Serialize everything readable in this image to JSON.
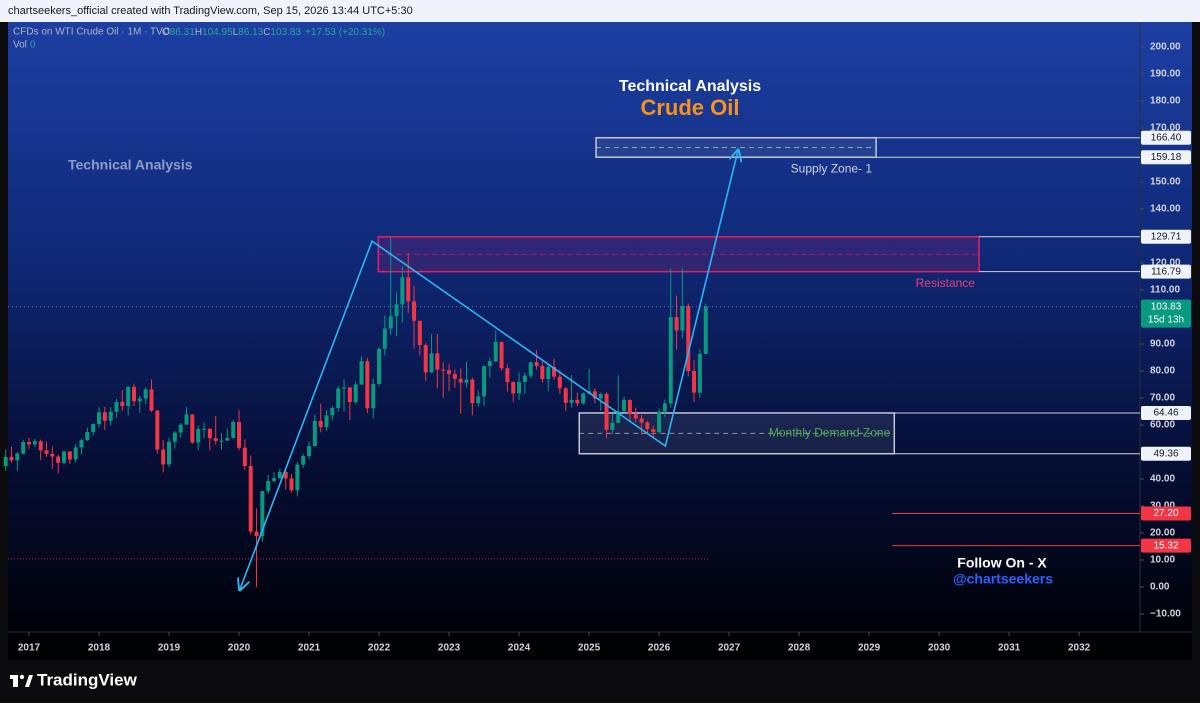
{
  "header": {
    "caption": "chartseekers_official created with TradingView.com, Sep 15, 2026 13:44 UTC+5:30"
  },
  "legend": {
    "o": "O",
    "h": "H",
    "l": "L",
    "c": "C",
    "change": "+17.53 (+20.31%)",
    "vol_label": "Vol",
    "vol": "0"
  },
  "footer": {
    "brand": "TradingView"
  },
  "chart_data": {
    "type": "candlestick",
    "title": "Technical Analysis",
    "subtitle": "Crude Oil",
    "annotation_left": "Technical Analysis",
    "follow": {
      "line1": "Follow On - X",
      "line2": "@chartseekers"
    },
    "xlim": [
      2016.7,
      2032.87
    ],
    "xticks": [
      2017,
      2018,
      2019,
      2020,
      2021,
      2022,
      2023,
      2024,
      2025,
      2026,
      2027,
      2028,
      2029,
      2030,
      2031,
      2032
    ],
    "ylim": [
      -16.67,
      209.26
    ],
    "yticks": [
      {
        "value": 200,
        "label": "200.00"
      },
      {
        "value": 190,
        "label": "190.00"
      },
      {
        "value": 180,
        "label": "180.00"
      },
      {
        "value": 170,
        "label": "170.00"
      },
      {
        "value": 160,
        "label": "160.00"
      },
      {
        "value": 150,
        "label": "150.00"
      },
      {
        "value": 140,
        "label": "140.00"
      },
      {
        "value": 130,
        "label": "130.00"
      },
      {
        "value": 120,
        "label": "120.00"
      },
      {
        "value": 110,
        "label": "110.00"
      },
      {
        "value": 100,
        "label": "100.00"
      },
      {
        "value": 90,
        "label": "90.00"
      },
      {
        "value": 80,
        "label": "80.00"
      },
      {
        "value": 70,
        "label": "70.00"
      },
      {
        "value": 60,
        "label": "60.00"
      },
      {
        "value": 50,
        "label": "50.00"
      },
      {
        "value": 40,
        "label": "40.00"
      },
      {
        "value": 30,
        "label": "30.00"
      },
      {
        "value": 20,
        "label": "20.00"
      },
      {
        "value": 10,
        "label": "10.00"
      },
      {
        "value": 0,
        "label": "0.00"
      },
      {
        "value": -10,
        "label": "−10.00"
      }
    ],
    "x": [
      2016.667,
      2016.75,
      2016.833,
      2016.917,
      2017,
      2017.083,
      2017.167,
      2017.25,
      2017.333,
      2017.417,
      2017.5,
      2017.583,
      2017.667,
      2017.75,
      2017.833,
      2017.917,
      2018,
      2018.083,
      2018.167,
      2018.25,
      2018.333,
      2018.417,
      2018.5,
      2018.583,
      2018.667,
      2018.75,
      2018.833,
      2018.917,
      2019,
      2019.083,
      2019.167,
      2019.25,
      2019.333,
      2019.417,
      2019.5,
      2019.583,
      2019.667,
      2019.75,
      2019.833,
      2019.917,
      2020,
      2020.083,
      2020.167,
      2020.25,
      2020.333,
      2020.417,
      2020.5,
      2020.583,
      2020.667,
      2020.75,
      2020.833,
      2020.917,
      2021,
      2021.083,
      2021.167,
      2021.25,
      2021.333,
      2021.417,
      2021.5,
      2021.583,
      2021.667,
      2021.75,
      2021.833,
      2021.917,
      2022,
      2022.083,
      2022.167,
      2022.25,
      2022.333,
      2022.417,
      2022.5,
      2022.583,
      2022.667,
      2022.75,
      2022.833,
      2022.917,
      2023,
      2023.083,
      2023.167,
      2023.25,
      2023.333,
      2023.417,
      2023.5,
      2023.583,
      2023.667,
      2023.75,
      2023.833,
      2023.917,
      2024,
      2024.083,
      2024.167,
      2024.25,
      2024.333,
      2024.417,
      2024.5,
      2024.583,
      2024.667,
      2024.75,
      2024.833,
      2024.917,
      2025,
      2025.083,
      2025.167,
      2025.25,
      2025.333,
      2025.417,
      2025.5,
      2025.583,
      2025.667,
      2025.75,
      2025.833,
      2025.917,
      2026,
      2026.083,
      2026.167,
      2026.25,
      2026.333,
      2026.417,
      2026.5,
      2026.583,
      2026.667
    ],
    "series": [
      {
        "name": "CFDs on WTI Crude Oil · 1M · TVC",
        "up_color": "#089981",
        "down_color": "#f23645",
        "open": [
          44.7,
          48.2,
          46.9,
          49.4,
          53.7,
          52.8,
          54.0,
          50.6,
          49.3,
          48.3,
          46.0,
          50.2,
          47.2,
          51.7,
          54.4,
          57.4,
          60.4,
          64.7,
          61.6,
          64.9,
          68.6,
          67.0,
          74.1,
          68.8,
          69.8,
          73.2,
          65.3,
          50.9,
          45.4,
          53.8,
          57.2,
          60.1,
          63.9,
          53.5,
          58.5,
          58.6,
          55.1,
          54.1,
          54.2,
          55.2,
          61.1,
          51.6,
          44.8,
          20.5,
          18.8,
          35.5,
          39.3,
          40.3,
          42.6,
          40.2,
          35.8,
          45.3,
          48.5,
          52.2,
          61.5,
          59.2,
          63.6,
          66.3,
          73.5,
          73.9,
          68.5,
          75.0,
          83.6,
          66.2,
          75.2,
          88.2,
          95.7,
          100.3,
          104.7,
          114.7,
          105.8,
          98.6,
          89.6,
          79.5,
          86.5,
          80.5,
          80.3,
          78.9,
          77.1,
          75.7,
          76.8,
          68.1,
          70.6,
          81.8,
          83.6,
          90.8,
          81.0,
          75.9,
          71.7,
          75.9,
          78.3,
          83.2,
          81.9,
          77.0,
          81.5,
          77.9,
          73.6,
          68.2,
          69.3,
          68.0,
          71.7,
          72.5,
          69.8,
          71.5,
          58.2,
          60.8,
          65.1,
          69.3,
          64.0,
          62.4,
          60.9,
          58.5,
          57.4,
          65.0,
          68.0,
          100.0,
          95.0,
          104.0,
          80.0,
          72.0,
          86.31
        ],
        "high": [
          51.0,
          51.9,
          50.0,
          54.5,
          55.2,
          54.9,
          54.6,
          53.8,
          52.0,
          49.0,
          50.4,
          50.4,
          52.9,
          54.9,
          59.0,
          60.5,
          66.6,
          66.7,
          66.6,
          69.6,
          72.9,
          74.5,
          75.3,
          70.8,
          73.9,
          76.9,
          65.7,
          54.4,
          55.3,
          57.8,
          60.7,
          66.6,
          63.9,
          59.9,
          60.9,
          58.8,
          63.4,
          57.0,
          58.7,
          61.9,
          65.6,
          54.7,
          48.7,
          29.1,
          35.7,
          41.6,
          42.5,
          43.8,
          43.4,
          41.9,
          46.3,
          49.4,
          53.9,
          63.8,
          67.9,
          65.5,
          67.0,
          74.4,
          76.9,
          74.0,
          76.0,
          85.4,
          84.9,
          77.2,
          88.8,
          100.6,
          129.4,
          109.0,
          118.7,
          123.7,
          111.5,
          97.6,
          90.4,
          93.6,
          93.7,
          83.3,
          82.7,
          80.6,
          81.0,
          83.5,
          77.6,
          72.7,
          82.0,
          84.9,
          95.0,
          90.8,
          82.4,
          76.2,
          79.3,
          79.3,
          83.6,
          87.7,
          83.5,
          82.6,
          84.5,
          80.2,
          74.0,
          78.5,
          72.0,
          72.0,
          80.8,
          73.6,
          72.0,
          72.1,
          64.2,
          78.4,
          70.5,
          69.5,
          66.4,
          63.7,
          61.5,
          59.7,
          66.2,
          69.5,
          118.0,
          108.0,
          118.0,
          105.0,
          84.0,
          88.0,
          104.95
        ],
        "low": [
          43.0,
          46.0,
          43.0,
          49.0,
          51.2,
          51.9,
          47.1,
          48.2,
          43.8,
          42.1,
          45.4,
          45.6,
          46.0,
          49.1,
          54.1,
          56.1,
          59.1,
          58.1,
          59.9,
          62.8,
          65.2,
          63.6,
          67.0,
          64.5,
          67.7,
          64.9,
          49.4,
          42.4,
          44.4,
          51.2,
          55.3,
          60.1,
          53.0,
          50.6,
          55.0,
          50.5,
          52.8,
          50.9,
          54.2,
          54.9,
          50.6,
          43.3,
          19.3,
          0.0,
          16.8,
          34.4,
          38.7,
          40.0,
          36.1,
          34.9,
          33.6,
          44.1,
          47.2,
          51.9,
          57.3,
          57.7,
          61.6,
          64.9,
          65.0,
          61.8,
          67.7,
          74.9,
          64.4,
          62.4,
          74.3,
          85.8,
          93.5,
          92.9,
          98.0,
          101.5,
          88.3,
          85.7,
          76.3,
          79.3,
          73.6,
          70.1,
          72.5,
          73.8,
          64.1,
          73.9,
          63.6,
          66.8,
          67.0,
          77.6,
          83.3,
          80.1,
          72.4,
          68.6,
          69.3,
          71.4,
          77.4,
          80.6,
          75.7,
          72.5,
          76.8,
          71.5,
          65.2,
          66.6,
          66.9,
          67.5,
          71.3,
          68.0,
          65.2,
          55.1,
          56.8,
          60.7,
          64.7,
          61.5,
          61.0,
          56.4,
          56.9,
          54.9,
          56.8,
          63.0,
          66.5,
          88.0,
          92.0,
          78.0,
          68.5,
          70.0,
          86.13
        ],
        "close": [
          48.2,
          46.9,
          49.4,
          53.7,
          52.8,
          54.0,
          50.6,
          49.3,
          48.3,
          46.0,
          50.2,
          47.2,
          51.7,
          54.4,
          57.4,
          60.4,
          64.7,
          61.6,
          64.9,
          68.6,
          67.0,
          74.1,
          68.8,
          69.8,
          73.2,
          65.3,
          50.9,
          45.4,
          53.8,
          57.2,
          60.1,
          63.9,
          53.5,
          58.5,
          58.6,
          55.1,
          54.1,
          54.2,
          55.2,
          61.1,
          51.6,
          44.8,
          20.5,
          18.8,
          35.5,
          39.3,
          40.3,
          42.6,
          40.2,
          35.8,
          45.3,
          48.5,
          52.2,
          61.5,
          59.2,
          63.6,
          66.3,
          73.5,
          73.9,
          68.5,
          75.0,
          83.6,
          66.2,
          75.2,
          88.2,
          95.7,
          100.3,
          104.7,
          114.7,
          105.8,
          98.6,
          89.6,
          79.5,
          86.5,
          80.5,
          80.3,
          78.9,
          77.1,
          75.7,
          76.8,
          68.1,
          70.6,
          81.8,
          83.6,
          90.8,
          81.0,
          75.9,
          71.7,
          75.9,
          78.3,
          83.2,
          81.9,
          77.0,
          81.5,
          77.9,
          73.6,
          68.2,
          69.3,
          68.0,
          71.7,
          72.5,
          69.8,
          71.5,
          58.2,
          60.8,
          65.1,
          69.3,
          64.0,
          62.4,
          60.9,
          58.5,
          57.4,
          65.0,
          68.0,
          100.0,
          95.0,
          104.0,
          80.0,
          72.0,
          86.31,
          103.83
        ]
      }
    ],
    "countdown": "15d 13h",
    "zones": [
      {
        "name": "Supply Zone- 1",
        "x": [
          2025.1,
          2029.1
        ],
        "values": [
          159.18,
          166.4
        ],
        "value_labels": [
          "159.18",
          "166.40"
        ],
        "color": "#c3c7d0",
        "label_color": "#d1d4dc"
      },
      {
        "name": "Resistance",
        "x": [
          2021.99,
          2030.57
        ],
        "values": [
          116.79,
          129.71
        ],
        "value_labels": [
          "116.79",
          "129.71"
        ],
        "color": "#e91e63",
        "label_color": "#ec407a"
      },
      {
        "name": "Monthly Demand Zone",
        "x": [
          2024.86,
          2029.36
        ],
        "values": [
          49.36,
          64.46
        ],
        "value_labels": [
          "49.36",
          "64.46"
        ],
        "color": "#c3c7d0",
        "label_color": "#4caf50"
      }
    ],
    "levels": [
      {
        "value": 27.2,
        "value_label": "27.20",
        "x_start": 2029.33,
        "color": "#f23645"
      },
      {
        "value": 15.32,
        "value_label": "15.32",
        "x_start": 2029.33,
        "color": "#f23645"
      }
    ],
    "low_line": {
      "value": 10.4,
      "x_end": 2026.7,
      "color": "#f23645"
    },
    "trend_line": {
      "color": "#29b6f6",
      "x": [
        2020.01,
        2021.9,
        2026.09,
        2027.13
      ],
      "y": [
        -1.1,
        128.1,
        52.2,
        161.9
      ]
    }
  }
}
